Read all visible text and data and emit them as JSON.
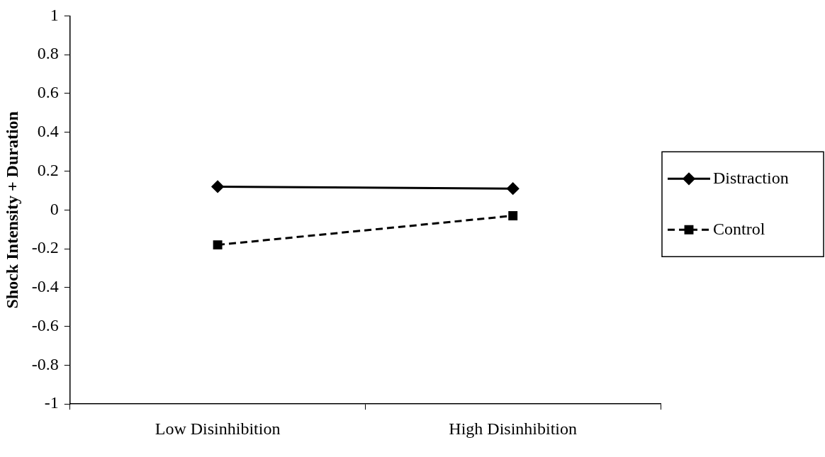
{
  "chart_data": {
    "type": "line",
    "ylabel": "Shock Intensity + Duration",
    "categories": [
      "Low Disinhibition",
      "High Disinhibition"
    ],
    "series": [
      {
        "name": "Distraction",
        "color": "#000000",
        "values": [
          0.12,
          0.11
        ],
        "marker": "diamond",
        "line_style": "solid"
      },
      {
        "name": "Control",
        "color": "#000000",
        "values": [
          -0.18,
          -0.03
        ],
        "marker": "square",
        "line_style": "dashed"
      }
    ],
    "ylim": [
      -1,
      1
    ],
    "yticks": [
      -1,
      -0.8,
      -0.6,
      -0.4,
      -0.2,
      0,
      0.2,
      0.4,
      0.6,
      0.8,
      1
    ],
    "grid": false,
    "legend": "right"
  }
}
